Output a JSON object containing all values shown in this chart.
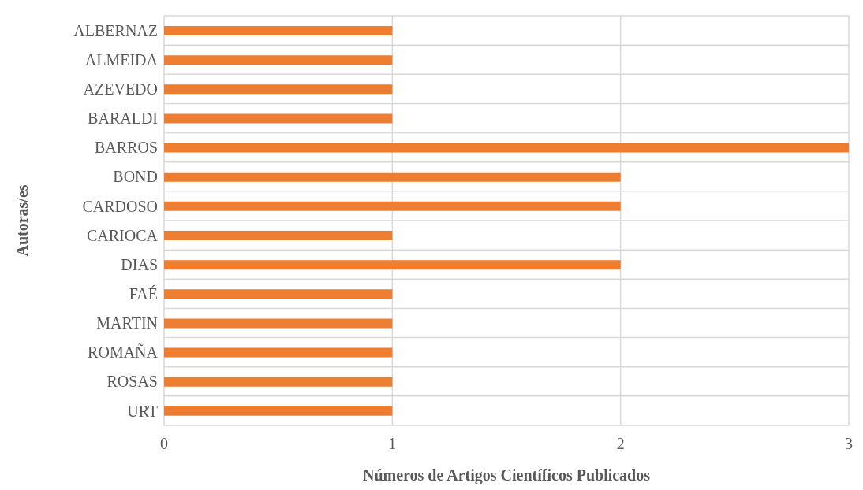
{
  "chart_data": {
    "type": "bar",
    "orientation": "horizontal",
    "xlabel": "Números de Artigos Científicos Publicados",
    "ylabel": "Autoras/es",
    "categories": [
      "ALBERNAZ",
      "ALMEIDA",
      "AZEVEDO",
      "BARALDI",
      "BARROS",
      "BOND",
      "CARDOSO",
      "CARIOCA",
      "DIAS",
      "FAÉ",
      "MARTIN",
      "ROMAÑA",
      "ROSAS",
      "URT"
    ],
    "values": [
      1,
      1,
      1,
      1,
      3,
      2,
      2,
      1,
      2,
      1,
      1,
      1,
      1,
      1
    ],
    "color": "#ed7d31",
    "xlim": [
      0,
      3
    ],
    "xticks": [
      0,
      1,
      2,
      3
    ],
    "grid": true
  }
}
